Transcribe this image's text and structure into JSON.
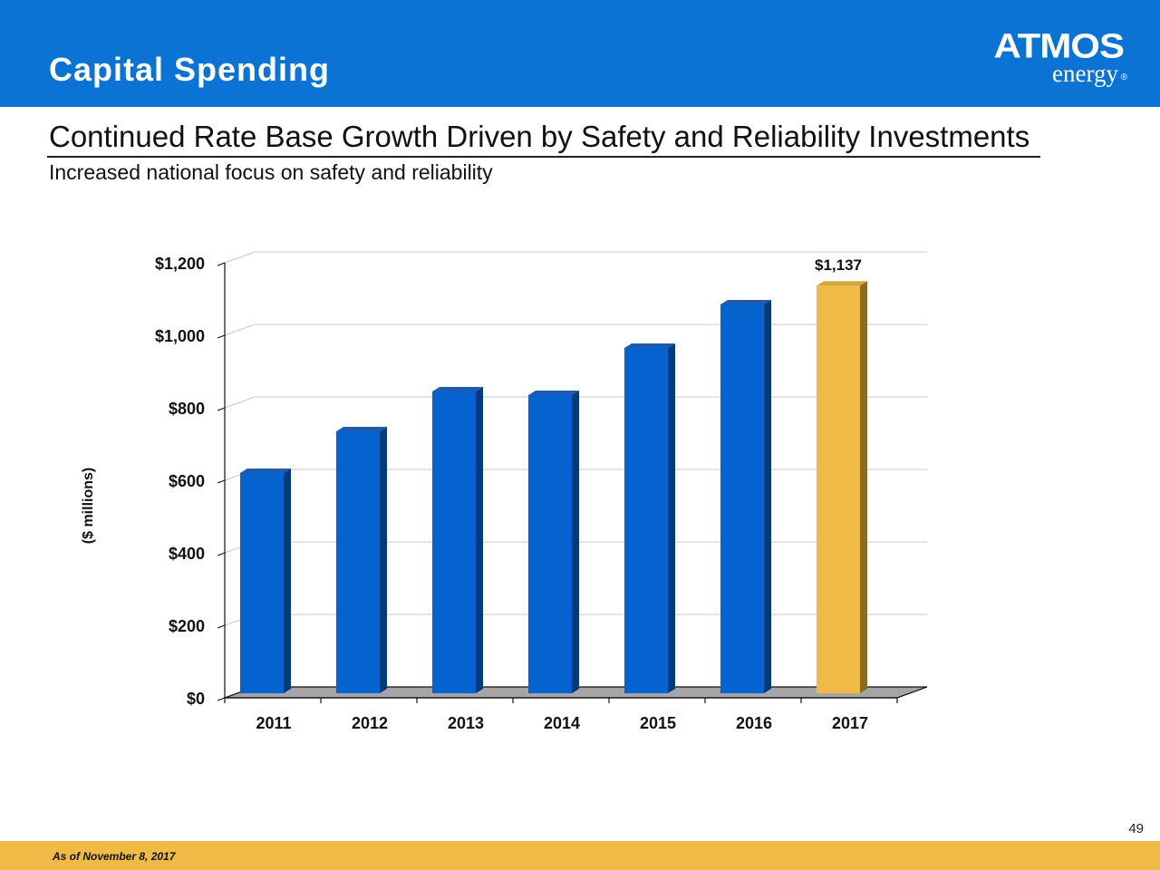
{
  "slide": {
    "title": "Capital Spending",
    "heading": "Continued Rate Base Growth Driven by Safety and Reliability Investments",
    "subheading": "Increased national focus on safety and reliability",
    "page_number": "49",
    "footnote": "As of November 8, 2017"
  },
  "logo": {
    "wordmark": "ATMOS",
    "sub": "energy",
    "registered": "®"
  },
  "colors": {
    "header": "#0a73d4",
    "bar_front": "#0563cf",
    "bar_side": "#023a7a",
    "bar_top": "#1d5bb0",
    "highlight_front": "#efbb46",
    "highlight_side": "#8a6a24",
    "highlight_top": "#d4a73c",
    "footer": "#efbb46"
  },
  "chart_data": {
    "type": "bar",
    "categories": [
      "2011",
      "2012",
      "2013",
      "2014",
      "2015",
      "2016",
      "2017"
    ],
    "values": [
      620,
      735,
      845,
      835,
      965,
      1085,
      1137
    ],
    "highlight_index": 6,
    "data_labels": [
      {
        "category": "2017",
        "text": "$1,137"
      }
    ],
    "ylabel": "($ millions)",
    "ylim": [
      0,
      1200
    ],
    "yticks": [
      0,
      200,
      400,
      600,
      800,
      1000,
      1200
    ],
    "ytick_labels": [
      "$0",
      "$200",
      "$400",
      "$600",
      "$800",
      "$1,000",
      "$1,200"
    ],
    "grid": true,
    "style": "3d"
  }
}
